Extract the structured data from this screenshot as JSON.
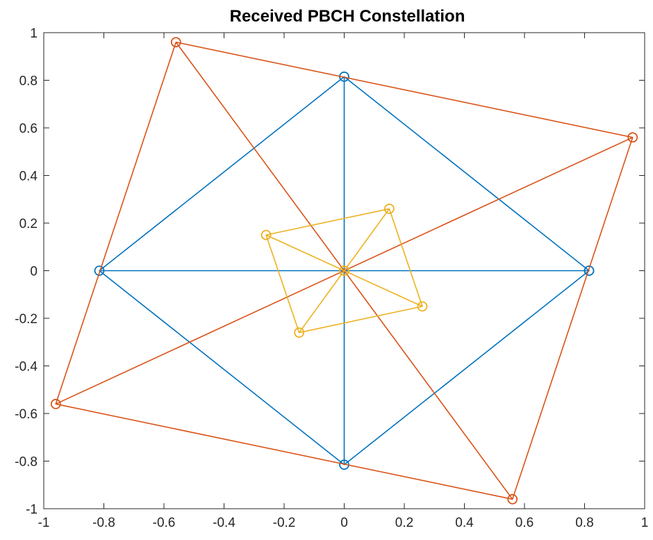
{
  "chart_data": {
    "type": "line",
    "title": "Received PBCH Constellation",
    "xlabel": "",
    "ylabel": "",
    "xlim": [
      -1,
      1
    ],
    "ylim": [
      -1,
      1
    ],
    "xticks": [
      "-1",
      "-0.8",
      "-0.6",
      "-0.4",
      "-0.2",
      "0",
      "0.2",
      "0.4",
      "0.6",
      "0.8",
      "1"
    ],
    "yticks": [
      "-1",
      "-0.8",
      "-0.6",
      "-0.4",
      "-0.2",
      "0",
      "0.2",
      "0.4",
      "0.6",
      "0.8",
      "1"
    ],
    "grid": false,
    "legend": "none",
    "marker": "circle",
    "series": [
      {
        "color": "#0072BD",
        "x": [
          0.815,
          0,
          -0.815,
          0,
          0.815,
          0,
          0,
          0,
          0.815,
          -0.815
        ],
        "y": [
          0,
          0.815,
          0,
          -0.815,
          0,
          0.815,
          0,
          -0.815,
          0,
          0
        ]
      },
      {
        "color": "#D95319",
        "x": [
          -0.56,
          0.96,
          0.56,
          -0.96,
          -0.56,
          0,
          0.56,
          0,
          0.96,
          -0.96
        ],
        "y": [
          0.96,
          0.56,
          -0.96,
          -0.56,
          0.96,
          0,
          -0.96,
          0,
          0.56,
          -0.56
        ]
      },
      {
        "color": "#EDB120",
        "x": [
          -0.26,
          0.15,
          0.26,
          -0.15,
          -0.26,
          0,
          0.15,
          0,
          0.26,
          0,
          -0.15,
          0,
          -0.26
        ],
        "y": [
          0.15,
          0.26,
          -0.15,
          -0.26,
          0.15,
          0,
          0.26,
          0,
          -0.15,
          0,
          -0.26,
          0,
          0.15
        ]
      }
    ]
  }
}
